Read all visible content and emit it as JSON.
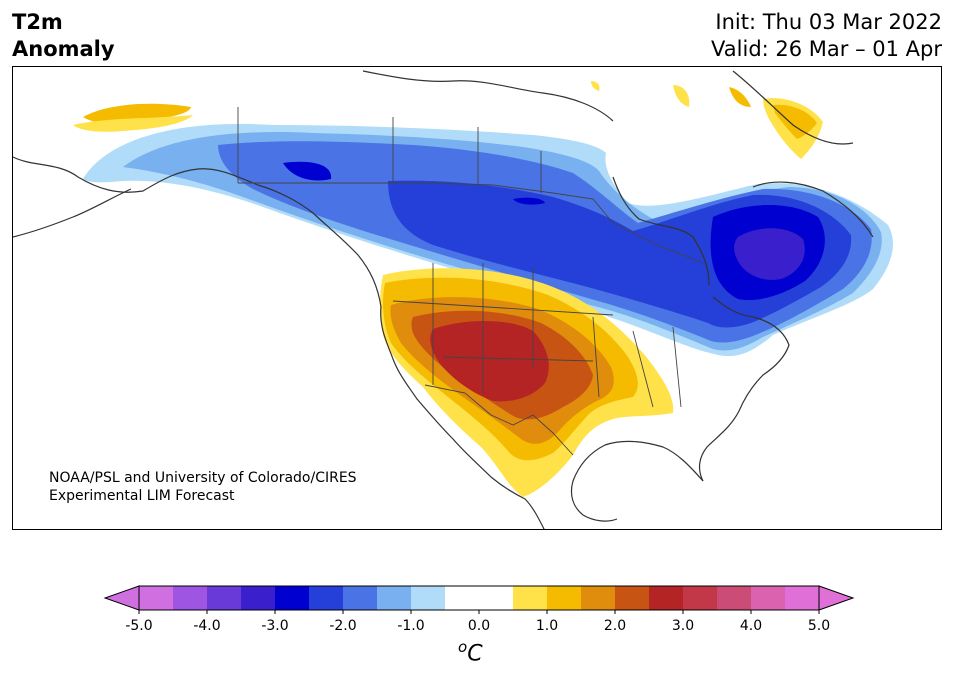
{
  "title": {
    "variable_line1": "T2m",
    "variable_line2": "Anomaly",
    "init": "Init: Thu 03 Mar 2022",
    "valid": "Valid: 26 Mar – 01 Apr"
  },
  "credit": {
    "line1": "NOAA/PSL and University of Colorado/CIRES",
    "line2": "Experimental LIM Forecast"
  },
  "colorbar": {
    "ticks": [
      "-5.0",
      "-4.0",
      "-3.0",
      "-2.0",
      "-1.0",
      "0.0",
      "1.0",
      "2.0",
      "3.0",
      "4.0",
      "5.0"
    ],
    "unit_symbol": "o",
    "unit_letter": "C",
    "colors": [
      "#d070e0",
      "#9e55e2",
      "#6a3ad8",
      "#3a20cc",
      "#0000d0",
      "#2440d8",
      "#4a74e6",
      "#78b0f0",
      "#b0dcfa",
      "#ffffff",
      "#ffffff",
      "#ffe24a",
      "#f4bb00",
      "#e08c0c",
      "#c85414",
      "#b42424",
      "#c23848",
      "#cc4c78",
      "#da62ae",
      "#e070d8"
    ]
  },
  "map": {
    "region": "North America",
    "legend_colors": {
      "cold_light": "#b0dcfa",
      "cold_medium": "#78b0f0",
      "cold_blue": "#4a74e6",
      "cold_strong": "#2440d8",
      "cold_deep": "#0000d0",
      "cold_violet": "#3a20cc",
      "warm_yellow": "#ffe24a",
      "warm_gold": "#f4bb00",
      "warm_orange": "#e08c0c",
      "warm_rust": "#c85414",
      "warm_red": "#b42424"
    }
  }
}
